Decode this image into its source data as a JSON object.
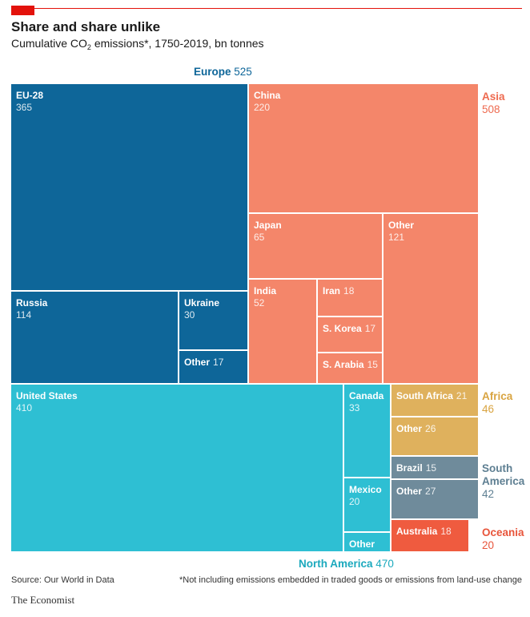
{
  "header": {
    "title": "Share and share unlike",
    "subtitle_main": "Cumulative CO",
    "subtitle_sub": "2",
    "subtitle_rest": " emissions*, 1750-2019, bn tonnes"
  },
  "footer": {
    "source": "Source: Our World in Data",
    "footnote": "*Not including emissions embedded in traded goods or emissions from land-use change",
    "brand": "The Economist"
  },
  "chart_data": {
    "type": "treemap",
    "units": "bn tonnes",
    "groups": [
      {
        "name": "Europe",
        "value": "525",
        "color": "#0e6699",
        "label_color": "#0e6699",
        "children": [
          {
            "name": "EU-28",
            "value": "365"
          },
          {
            "name": "Russia",
            "value": "114"
          },
          {
            "name": "Ukraine",
            "value": "30"
          },
          {
            "name": "Other",
            "value": "17"
          }
        ]
      },
      {
        "name": "Asia",
        "value": "508",
        "color": "#f4866a",
        "label_color": "#ee6a4f",
        "children": [
          {
            "name": "China",
            "value": "220"
          },
          {
            "name": "Japan",
            "value": "65"
          },
          {
            "name": "Other",
            "value": "121"
          },
          {
            "name": "India",
            "value": "52"
          },
          {
            "name": "Iran",
            "value": "18"
          },
          {
            "name": "S. Korea",
            "value": "17"
          },
          {
            "name": "S. Arabia",
            "value": "15"
          }
        ]
      },
      {
        "name": "North America",
        "value": "470",
        "color": "#2ebfd3",
        "label_color": "#1ba9bd",
        "children": [
          {
            "name": "United States",
            "value": "410"
          },
          {
            "name": "Canada",
            "value": "33"
          },
          {
            "name": "Mexico",
            "value": "20"
          },
          {
            "name": "Other",
            "value": ""
          }
        ]
      },
      {
        "name": "Africa",
        "value": "46",
        "color": "#dfb15d",
        "label_color": "#d9a441",
        "children": [
          {
            "name": "South Africa",
            "value": "21"
          },
          {
            "name": "Other",
            "value": "26"
          }
        ]
      },
      {
        "name": "South America",
        "value": "42",
        "color": "#6f8b9b",
        "label_color": "#5e7f92",
        "children": [
          {
            "name": "Brazil",
            "value": "15"
          },
          {
            "name": "Other",
            "value": "27"
          }
        ]
      },
      {
        "name": "Oceania",
        "value": "20",
        "color": "#ef5b3f",
        "label_color": "#e8553b",
        "children": [
          {
            "name": "Australia",
            "value": "18"
          }
        ]
      }
    ]
  }
}
